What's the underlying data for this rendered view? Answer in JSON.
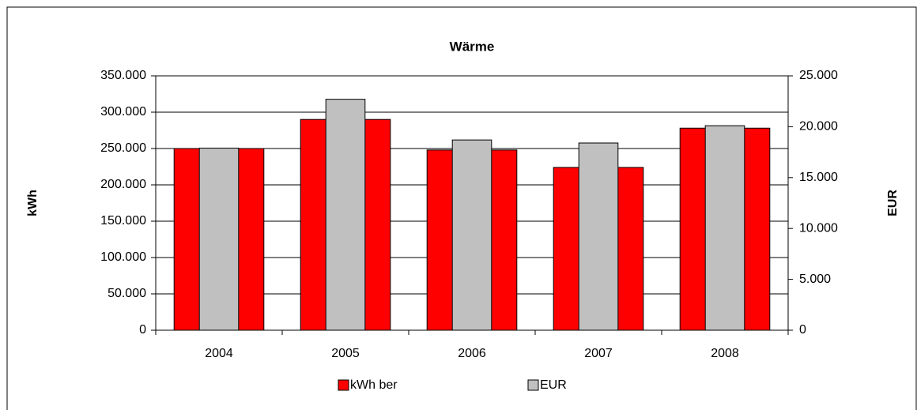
{
  "chart_data": {
    "type": "bar",
    "title": "Wärme",
    "categories": [
      "2004",
      "2005",
      "2006",
      "2007",
      "2008"
    ],
    "series": [
      {
        "name": "kWh ber",
        "color": "#ff0000",
        "values": [
          250000,
          290000,
          248000,
          224000,
          278000
        ]
      },
      {
        "name": "EUR",
        "color": "#c0c0c0",
        "axis": "y2",
        "values": [
          17900,
          22700,
          18700,
          18400,
          20100
        ]
      }
    ],
    "ylabel": "kWh",
    "y2label": "EUR",
    "ylim": [
      0,
      350000
    ],
    "yticks": [
      0,
      {
        "value": 50000,
        "label": "50.000"
      },
      {
        "value": 100000,
        "label": "100.000"
      },
      {
        "value": 150000,
        "label": "150.000"
      },
      {
        "value": 200000,
        "label": "200.000"
      },
      {
        "value": 250000,
        "label": "250.000"
      },
      {
        "value": 300000,
        "label": "300.000"
      },
      {
        "value": 350000,
        "label": "350.000"
      }
    ],
    "y2lim": [
      0,
      25000
    ],
    "y2ticks": [
      0,
      {
        "value": 5000,
        "label": "5.000"
      },
      {
        "value": 10000,
        "label": "10.000"
      },
      {
        "value": 15000,
        "label": "15.000"
      },
      {
        "value": 20000,
        "label": "20.000"
      },
      {
        "value": 25000,
        "label": "25.000"
      }
    ],
    "grid": true,
    "legend": "bottom"
  }
}
